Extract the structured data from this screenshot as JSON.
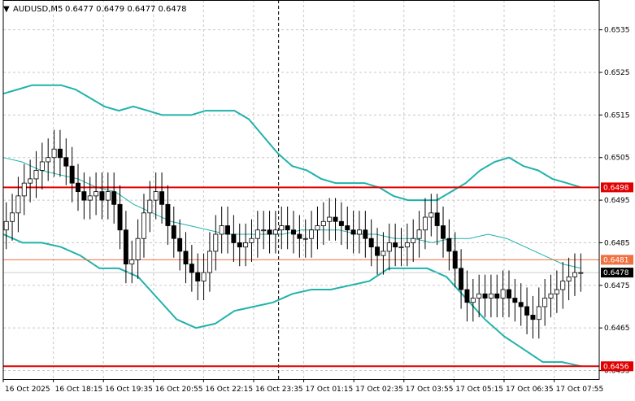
{
  "header": {
    "arrow": "▼",
    "symbol": "AUDUSD,M5",
    "quote": "0.6477 0.6479 0.6477 0.6478"
  },
  "colors": {
    "background": "#ffffff",
    "grid": "#c8c8c8",
    "bullish_candle": "#ffffff",
    "bearish_candle": "#000000",
    "bollinger_band": "#20b2aa",
    "support_resistance_line": "#e00000",
    "marker_line": "#f07040",
    "current_price_tag": "#000000"
  },
  "chart_data": {
    "type": "candlestick",
    "title": "AUDUSD,M5",
    "ylim": [
      0.6453,
      0.6542
    ],
    "y_ticks": [
      "0.6535",
      "0.6525",
      "0.6515",
      "0.6505",
      "0.6495",
      "0.6485",
      "0.6475",
      "0.6465",
      "0.6455"
    ],
    "x_ticks": [
      "16 Oct 2025",
      "16 Oct 18:15",
      "16 Oct 19:35",
      "16 Oct 20:55",
      "16 Oct 22:15",
      "16 Oct 23:35",
      "17 Oct 01:15",
      "17 Oct 02:35",
      "17 Oct 03:55",
      "17 Oct 05:15",
      "17 Oct 06:35",
      "17 Oct 07:55"
    ],
    "grid": true,
    "legend": "none",
    "horizontal_levels": [
      {
        "label": "0.6498",
        "value": 0.6498,
        "style": "red"
      },
      {
        "label": "0.6481",
        "value": 0.6481,
        "style": "orange"
      },
      {
        "label": "0.6478",
        "value": 0.6478,
        "style": "current"
      },
      {
        "label": "0.6456",
        "value": 0.6456,
        "style": "red"
      }
    ],
    "vertical_marker_fraction": 0.462,
    "close_series": [
      0.649,
      0.6492,
      0.6496,
      0.6499,
      0.65,
      0.6502,
      0.6504,
      0.6505,
      0.6507,
      0.6505,
      0.6503,
      0.6499,
      0.6497,
      0.6495,
      0.6496,
      0.6497,
      0.6495,
      0.6497,
      0.6494,
      0.6488,
      0.648,
      0.6481,
      0.6486,
      0.6492,
      0.6495,
      0.6497,
      0.6494,
      0.6489,
      0.6486,
      0.6483,
      0.648,
      0.6478,
      0.6476,
      0.6478,
      0.6483,
      0.6487,
      0.6489,
      0.6487,
      0.6485,
      0.6484,
      0.6485,
      0.6486,
      0.6488,
      0.6488,
      0.6487,
      0.6488,
      0.6489,
      0.6488,
      0.6487,
      0.6486,
      0.6486,
      0.6488,
      0.6489,
      0.649,
      0.6491,
      0.649,
      0.6489,
      0.6488,
      0.6487,
      0.6488,
      0.6486,
      0.6484,
      0.6482,
      0.6483,
      0.6485,
      0.6484,
      0.6484,
      0.6485,
      0.6486,
      0.6488,
      0.6491,
      0.6492,
      0.6489,
      0.6486,
      0.6483,
      0.6479,
      0.6474,
      0.6471,
      0.6472,
      0.6473,
      0.6472,
      0.6473,
      0.6472,
      0.6474,
      0.6472,
      0.6471,
      0.647,
      0.6468,
      0.6467,
      0.647,
      0.6472,
      0.6473,
      0.6474,
      0.6476,
      0.6477,
      0.6478,
      0.6478
    ],
    "series": [
      {
        "name": "bollinger-upper",
        "values": [
          0.652,
          0.6521,
          0.6522,
          0.6522,
          0.6522,
          0.6521,
          0.6519,
          0.6517,
          0.6516,
          0.6517,
          0.6516,
          0.6515,
          0.6515,
          0.6515,
          0.6516,
          0.6516,
          0.6516,
          0.6514,
          0.651,
          0.6506,
          0.6503,
          0.6502,
          0.65,
          0.6499,
          0.6499,
          0.6499,
          0.6498,
          0.6496,
          0.6495,
          0.6495,
          0.6495,
          0.6497,
          0.6499,
          0.6502,
          0.6504,
          0.6505,
          0.6503,
          0.6502,
          0.65,
          0.6499,
          0.6498
        ]
      },
      {
        "name": "bollinger-middle",
        "values": [
          0.6505,
          0.6504,
          0.6502,
          0.6501,
          0.65,
          0.6498,
          0.6497,
          0.6494,
          0.6492,
          0.649,
          0.6489,
          0.6488,
          0.6487,
          0.6487,
          0.6487,
          0.6487,
          0.6488,
          0.6488,
          0.6488,
          0.6487,
          0.6487,
          0.6486,
          0.6486,
          0.6485,
          0.6486,
          0.6486,
          0.6487,
          0.6486,
          0.6484,
          0.6482,
          0.648,
          0.6479
        ]
      },
      {
        "name": "bollinger-lower",
        "values": [
          0.6487,
          0.6485,
          0.6485,
          0.6484,
          0.6482,
          0.6479,
          0.6479,
          0.6477,
          0.6472,
          0.6467,
          0.6465,
          0.6466,
          0.6469,
          0.647,
          0.6471,
          0.6473,
          0.6474,
          0.6474,
          0.6475,
          0.6476,
          0.6479,
          0.6479,
          0.6479,
          0.6477,
          0.6472,
          0.6467,
          0.6463,
          0.646,
          0.6457,
          0.6457,
          0.6456
        ]
      }
    ]
  }
}
